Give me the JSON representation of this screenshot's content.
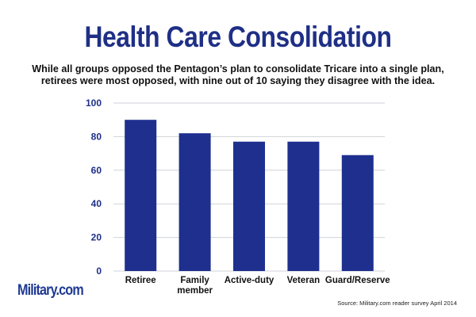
{
  "colors": {
    "title": "#1f2f86",
    "bar": "#1e2f8e",
    "grid": "#cfd2d8",
    "axis_text": "#1f2f86",
    "logo": "#1f3a93"
  },
  "header": {
    "title": "Health Care Consolidation",
    "subtitle_line1": "While all groups opposed the Pentagon’s plan to consolidate Tricare into a single plan,",
    "subtitle_line2": "retirees were most opposed, with nine out of 10 saying they disagree with the idea."
  },
  "footer": {
    "logo_text": "Military.com",
    "source": "Source: Military.com reader survey April 2014"
  },
  "chart_data": {
    "type": "bar",
    "title": "Health Care Consolidation",
    "categories": [
      "Retiree",
      "Family member",
      "Active-duty",
      "Veteran",
      "Guard/Reserve"
    ],
    "category_lines": [
      [
        "Retiree"
      ],
      [
        "Family",
        "member"
      ],
      [
        "Active-duty"
      ],
      [
        "Veteran"
      ],
      [
        "Guard/Reserve"
      ]
    ],
    "values": [
      90,
      82,
      77,
      77,
      69
    ],
    "ylim": [
      0,
      100
    ],
    "yticks": [
      0,
      20,
      40,
      60,
      80,
      100
    ],
    "grid": true,
    "xlabel": "",
    "ylabel": ""
  }
}
